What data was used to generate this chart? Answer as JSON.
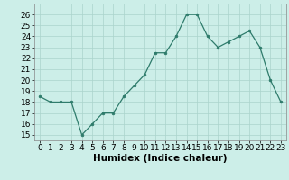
{
  "x": [
    0,
    1,
    2,
    3,
    4,
    5,
    6,
    7,
    8,
    9,
    10,
    11,
    12,
    13,
    14,
    15,
    16,
    17,
    18,
    19,
    20,
    21,
    22,
    23
  ],
  "y": [
    18.5,
    18.0,
    18.0,
    18.0,
    15.0,
    16.0,
    17.0,
    17.0,
    18.5,
    19.5,
    20.5,
    22.5,
    22.5,
    24.0,
    26.0,
    26.0,
    24.0,
    23.0,
    23.5,
    24.0,
    24.5,
    23.0,
    20.0,
    18.0
  ],
  "line_color": "#2e7b6b",
  "marker_color": "#2e7b6b",
  "bg_color": "#cceee8",
  "grid_color": "#aad4cc",
  "xlabel": "Humidex (Indice chaleur)",
  "ylim": [
    14.5,
    27
  ],
  "xlim": [
    -0.5,
    23.5
  ],
  "yticks": [
    15,
    16,
    17,
    18,
    19,
    20,
    21,
    22,
    23,
    24,
    25,
    26
  ],
  "xticks": [
    0,
    1,
    2,
    3,
    4,
    5,
    6,
    7,
    8,
    9,
    10,
    11,
    12,
    13,
    14,
    15,
    16,
    17,
    18,
    19,
    20,
    21,
    22,
    23
  ],
  "label_fontsize": 7.5,
  "tick_fontsize": 6.5
}
